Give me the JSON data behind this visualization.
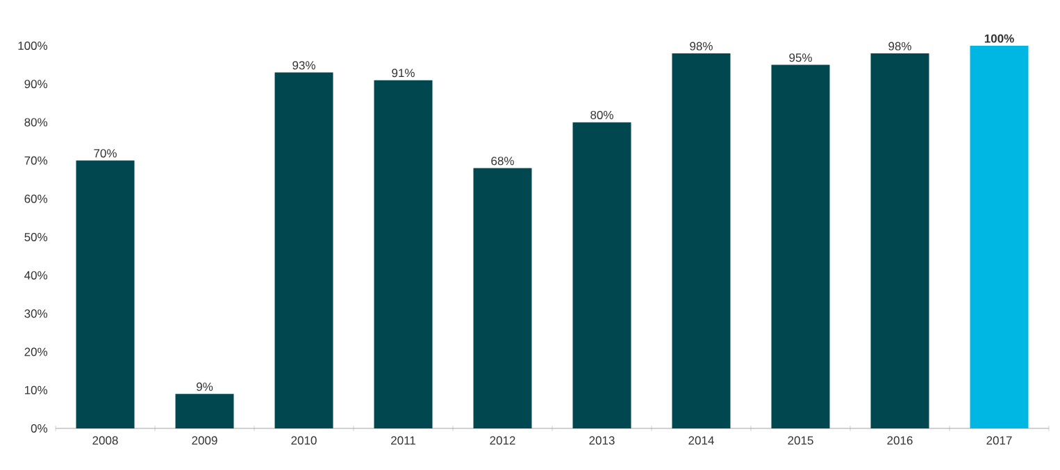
{
  "chart_data": {
    "type": "bar",
    "categories": [
      "2008",
      "2009",
      "2010",
      "2011",
      "2012",
      "2013",
      "2014",
      "2015",
      "2016",
      "2017"
    ],
    "values": [
      70,
      9,
      93,
      91,
      68,
      80,
      98,
      95,
      98,
      100
    ],
    "value_labels": [
      "70%",
      "9%",
      "93%",
      "91%",
      "68%",
      "80%",
      "98%",
      "95%",
      "98%",
      "**100%**"
    ],
    "colors": [
      "#00474f",
      "#00474f",
      "#00474f",
      "#00474f",
      "#00474f",
      "#00474f",
      "#00474f",
      "#00474f",
      "#00474f",
      "#00b7e4"
    ],
    "ylim": [
      0,
      100
    ],
    "yticks": [
      {
        "value": 0,
        "label": "0%"
      },
      {
        "value": 10,
        "label": "10%"
      },
      {
        "value": 20,
        "label": "20%"
      },
      {
        "value": 30,
        "label": "30%"
      },
      {
        "value": 40,
        "label": "40%"
      },
      {
        "value": 50,
        "label": "50%"
      },
      {
        "value": 60,
        "label": "60%"
      },
      {
        "value": 70,
        "label": "70%"
      },
      {
        "value": 80,
        "label": "80%"
      },
      {
        "value": 90,
        "label": "90%"
      },
      {
        "value": 100,
        "label": "100%"
      }
    ]
  }
}
